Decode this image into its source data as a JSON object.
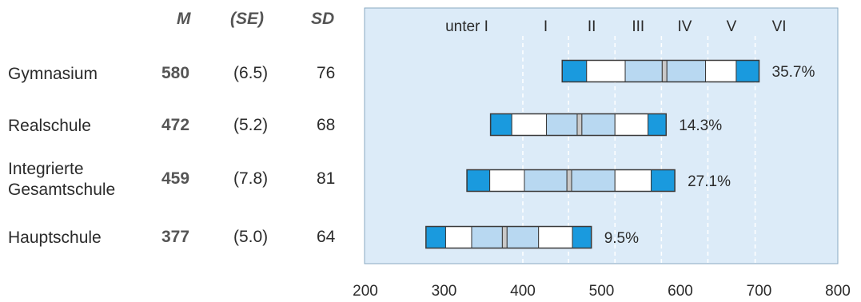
{
  "headers": {
    "m": "M",
    "se": "(SE)",
    "sd": "SD"
  },
  "rows": [
    {
      "school": [
        "Gymnasium"
      ],
      "m": "580",
      "se": "(6.5)",
      "sd": "76"
    },
    {
      "school": [
        "Realschule"
      ],
      "m": "472",
      "se": "(5.2)",
      "sd": "68"
    },
    {
      "school": [
        "Integrierte",
        "Gesamtschule"
      ],
      "m": "459",
      "se": "(7.8)",
      "sd": "81"
    },
    {
      "school": [
        "Hauptschule"
      ],
      "m": "377",
      "se": "(5.0)",
      "sd": "64"
    }
  ],
  "chart_data": {
    "type": "bar",
    "description_of_bars": "percentile bands per school type: 5th, 10th, 25th, mean-CI low, mean-CI high, 75th, 90th, 95th",
    "xlim": [
      200,
      800
    ],
    "xticks": [
      "200",
      "300",
      "400",
      "500",
      "600",
      "700",
      "800"
    ],
    "grid": true,
    "levels": [
      {
        "label": "unter I",
        "boundary": null
      },
      {
        "label": "I",
        "boundary": 400
      },
      {
        "label": "II",
        "boundary": 458
      },
      {
        "label": "III",
        "boundary": 517
      },
      {
        "label": "IV",
        "boundary": 576
      },
      {
        "label": "V",
        "boundary": 635
      },
      {
        "label": "VI",
        "boundary": 695
      }
    ],
    "series": [
      {
        "category": "Gymnasium",
        "p5": 450,
        "p10": 481,
        "p25": 530,
        "ci_low": 577,
        "ci_high": 583,
        "p75": 632,
        "p90": 671,
        "p95": 700,
        "share": "35.7%"
      },
      {
        "category": "Realschule",
        "p5": 359,
        "p10": 386,
        "p25": 430,
        "ci_low": 469,
        "ci_high": 475,
        "p75": 517,
        "p90": 559,
        "p95": 582,
        "share": "14.3%"
      },
      {
        "category": "Integrierte Gesamtschule",
        "p5": 329,
        "p10": 358,
        "p25": 402,
        "ci_low": 456,
        "ci_high": 462,
        "p75": 517,
        "p90": 563,
        "p95": 593,
        "share": "27.1%"
      },
      {
        "category": "Hauptschule",
        "p5": 277,
        "p10": 302,
        "p25": 335,
        "ci_low": 374,
        "ci_high": 380,
        "p75": 420,
        "p90": 463,
        "p95": 487,
        "share": "9.5%"
      }
    ],
    "colors": {
      "panel": "#dcebf8",
      "p5_p10": "#1a9ade",
      "p10_p25": "#ffffff",
      "p25_p75": "#b8d8f1",
      "frame": "#3a3a3a"
    }
  }
}
